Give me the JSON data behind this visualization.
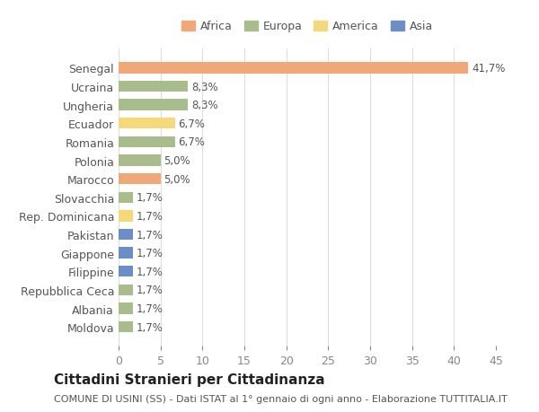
{
  "countries": [
    "Senegal",
    "Ucraina",
    "Ungheria",
    "Ecuador",
    "Romania",
    "Polonia",
    "Marocco",
    "Slovacchia",
    "Rep. Dominicana",
    "Pakistan",
    "Giappone",
    "Filippine",
    "Repubblica Ceca",
    "Albania",
    "Moldova"
  ],
  "values": [
    41.7,
    8.3,
    8.3,
    6.7,
    6.7,
    5.0,
    5.0,
    1.7,
    1.7,
    1.7,
    1.7,
    1.7,
    1.7,
    1.7,
    1.7
  ],
  "labels": [
    "41,7%",
    "8,3%",
    "8,3%",
    "6,7%",
    "6,7%",
    "5,0%",
    "5,0%",
    "1,7%",
    "1,7%",
    "1,7%",
    "1,7%",
    "1,7%",
    "1,7%",
    "1,7%",
    "1,7%"
  ],
  "continents": [
    "Africa",
    "Europa",
    "Europa",
    "America",
    "Europa",
    "Europa",
    "Africa",
    "Europa",
    "America",
    "Asia",
    "Asia",
    "Asia",
    "Europa",
    "Europa",
    "Europa"
  ],
  "colors": {
    "Africa": "#F0A878",
    "Europa": "#A8BC8C",
    "America": "#F5D878",
    "Asia": "#6B8DC8"
  },
  "legend_order": [
    "Africa",
    "Europa",
    "America",
    "Asia"
  ],
  "xlim": [
    0,
    45
  ],
  "xticks": [
    0,
    5,
    10,
    15,
    20,
    25,
    30,
    35,
    40,
    45
  ],
  "title": "Cittadini Stranieri per Cittadinanza",
  "subtitle": "COMUNE DI USINI (SS) - Dati ISTAT al 1° gennaio di ogni anno - Elaborazione TUTTITALIA.IT",
  "bg_color": "#FFFFFF",
  "grid_color": "#DDDDDD",
  "bar_height": 0.6,
  "label_fontsize": 8.5,
  "tick_fontsize": 9,
  "title_fontsize": 11,
  "subtitle_fontsize": 8
}
